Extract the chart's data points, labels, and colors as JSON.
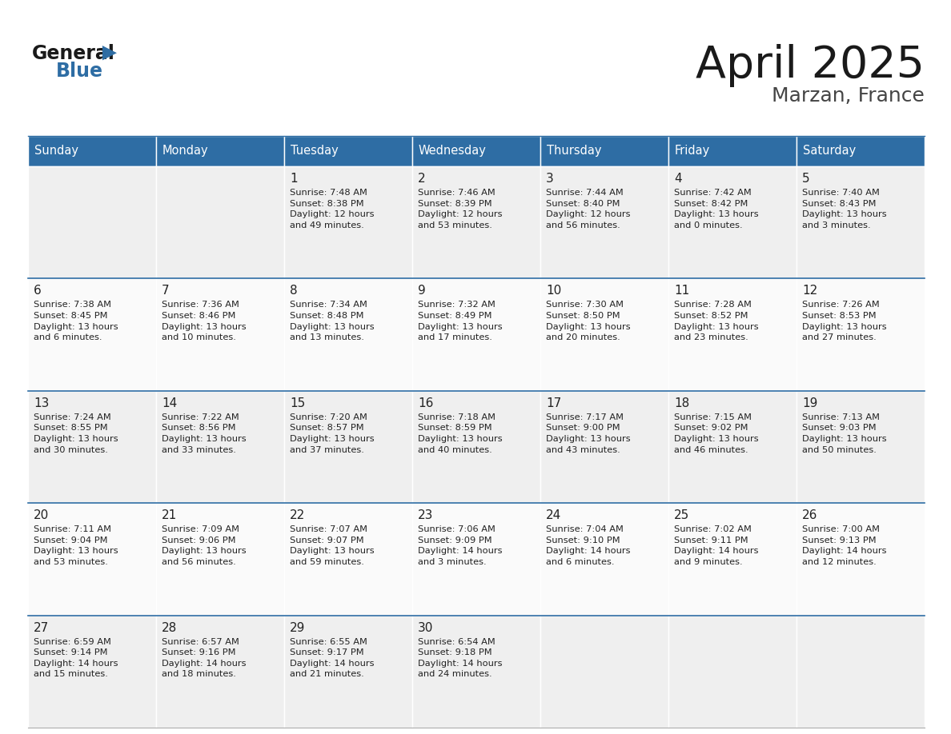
{
  "title": "April 2025",
  "subtitle": "Marzan, France",
  "header_color": "#2E6DA4",
  "header_text_color": "#FFFFFF",
  "row_separator_color": "#2E6DA4",
  "cell_bg_even": "#EFEFEF",
  "cell_bg_odd": "#FAFAFA",
  "text_color": "#222222",
  "days_of_week": [
    "Sunday",
    "Monday",
    "Tuesday",
    "Wednesday",
    "Thursday",
    "Friday",
    "Saturday"
  ],
  "weeks": [
    [
      {
        "day": "",
        "info": ""
      },
      {
        "day": "",
        "info": ""
      },
      {
        "day": "1",
        "info": "Sunrise: 7:48 AM\nSunset: 8:38 PM\nDaylight: 12 hours\nand 49 minutes."
      },
      {
        "day": "2",
        "info": "Sunrise: 7:46 AM\nSunset: 8:39 PM\nDaylight: 12 hours\nand 53 minutes."
      },
      {
        "day": "3",
        "info": "Sunrise: 7:44 AM\nSunset: 8:40 PM\nDaylight: 12 hours\nand 56 minutes."
      },
      {
        "day": "4",
        "info": "Sunrise: 7:42 AM\nSunset: 8:42 PM\nDaylight: 13 hours\nand 0 minutes."
      },
      {
        "day": "5",
        "info": "Sunrise: 7:40 AM\nSunset: 8:43 PM\nDaylight: 13 hours\nand 3 minutes."
      }
    ],
    [
      {
        "day": "6",
        "info": "Sunrise: 7:38 AM\nSunset: 8:45 PM\nDaylight: 13 hours\nand 6 minutes."
      },
      {
        "day": "7",
        "info": "Sunrise: 7:36 AM\nSunset: 8:46 PM\nDaylight: 13 hours\nand 10 minutes."
      },
      {
        "day": "8",
        "info": "Sunrise: 7:34 AM\nSunset: 8:48 PM\nDaylight: 13 hours\nand 13 minutes."
      },
      {
        "day": "9",
        "info": "Sunrise: 7:32 AM\nSunset: 8:49 PM\nDaylight: 13 hours\nand 17 minutes."
      },
      {
        "day": "10",
        "info": "Sunrise: 7:30 AM\nSunset: 8:50 PM\nDaylight: 13 hours\nand 20 minutes."
      },
      {
        "day": "11",
        "info": "Sunrise: 7:28 AM\nSunset: 8:52 PM\nDaylight: 13 hours\nand 23 minutes."
      },
      {
        "day": "12",
        "info": "Sunrise: 7:26 AM\nSunset: 8:53 PM\nDaylight: 13 hours\nand 27 minutes."
      }
    ],
    [
      {
        "day": "13",
        "info": "Sunrise: 7:24 AM\nSunset: 8:55 PM\nDaylight: 13 hours\nand 30 minutes."
      },
      {
        "day": "14",
        "info": "Sunrise: 7:22 AM\nSunset: 8:56 PM\nDaylight: 13 hours\nand 33 minutes."
      },
      {
        "day": "15",
        "info": "Sunrise: 7:20 AM\nSunset: 8:57 PM\nDaylight: 13 hours\nand 37 minutes."
      },
      {
        "day": "16",
        "info": "Sunrise: 7:18 AM\nSunset: 8:59 PM\nDaylight: 13 hours\nand 40 minutes."
      },
      {
        "day": "17",
        "info": "Sunrise: 7:17 AM\nSunset: 9:00 PM\nDaylight: 13 hours\nand 43 minutes."
      },
      {
        "day": "18",
        "info": "Sunrise: 7:15 AM\nSunset: 9:02 PM\nDaylight: 13 hours\nand 46 minutes."
      },
      {
        "day": "19",
        "info": "Sunrise: 7:13 AM\nSunset: 9:03 PM\nDaylight: 13 hours\nand 50 minutes."
      }
    ],
    [
      {
        "day": "20",
        "info": "Sunrise: 7:11 AM\nSunset: 9:04 PM\nDaylight: 13 hours\nand 53 minutes."
      },
      {
        "day": "21",
        "info": "Sunrise: 7:09 AM\nSunset: 9:06 PM\nDaylight: 13 hours\nand 56 minutes."
      },
      {
        "day": "22",
        "info": "Sunrise: 7:07 AM\nSunset: 9:07 PM\nDaylight: 13 hours\nand 59 minutes."
      },
      {
        "day": "23",
        "info": "Sunrise: 7:06 AM\nSunset: 9:09 PM\nDaylight: 14 hours\nand 3 minutes."
      },
      {
        "day": "24",
        "info": "Sunrise: 7:04 AM\nSunset: 9:10 PM\nDaylight: 14 hours\nand 6 minutes."
      },
      {
        "day": "25",
        "info": "Sunrise: 7:02 AM\nSunset: 9:11 PM\nDaylight: 14 hours\nand 9 minutes."
      },
      {
        "day": "26",
        "info": "Sunrise: 7:00 AM\nSunset: 9:13 PM\nDaylight: 14 hours\nand 12 minutes."
      }
    ],
    [
      {
        "day": "27",
        "info": "Sunrise: 6:59 AM\nSunset: 9:14 PM\nDaylight: 14 hours\nand 15 minutes."
      },
      {
        "day": "28",
        "info": "Sunrise: 6:57 AM\nSunset: 9:16 PM\nDaylight: 14 hours\nand 18 minutes."
      },
      {
        "day": "29",
        "info": "Sunrise: 6:55 AM\nSunset: 9:17 PM\nDaylight: 14 hours\nand 21 minutes."
      },
      {
        "day": "30",
        "info": "Sunrise: 6:54 AM\nSunset: 9:18 PM\nDaylight: 14 hours\nand 24 minutes."
      },
      {
        "day": "",
        "info": ""
      },
      {
        "day": "",
        "info": ""
      },
      {
        "day": "",
        "info": ""
      }
    ]
  ]
}
